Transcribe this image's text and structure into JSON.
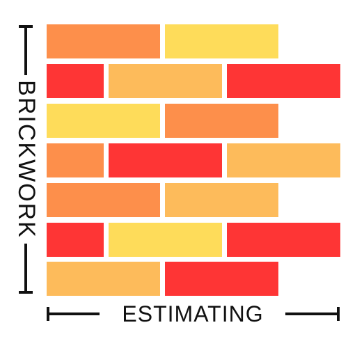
{
  "logo": {
    "vertical_text": "BRICKWORK",
    "horizontal_text": "ESTIMATING",
    "colors": {
      "orange": "#fd8f4b",
      "yellow": "#fedc5a",
      "red": "#fe3535",
      "amber": "#fdbb5b",
      "ink": "#111111"
    },
    "brick_rows": [
      [
        "orange",
        "yellow"
      ],
      [
        "red",
        "amber",
        "red"
      ],
      [
        "yellow",
        "orange"
      ],
      [
        "orange",
        "red",
        "amber"
      ],
      [
        "orange",
        "amber"
      ],
      [
        "red",
        "yellow",
        "red"
      ],
      [
        "amber",
        "red"
      ]
    ]
  }
}
